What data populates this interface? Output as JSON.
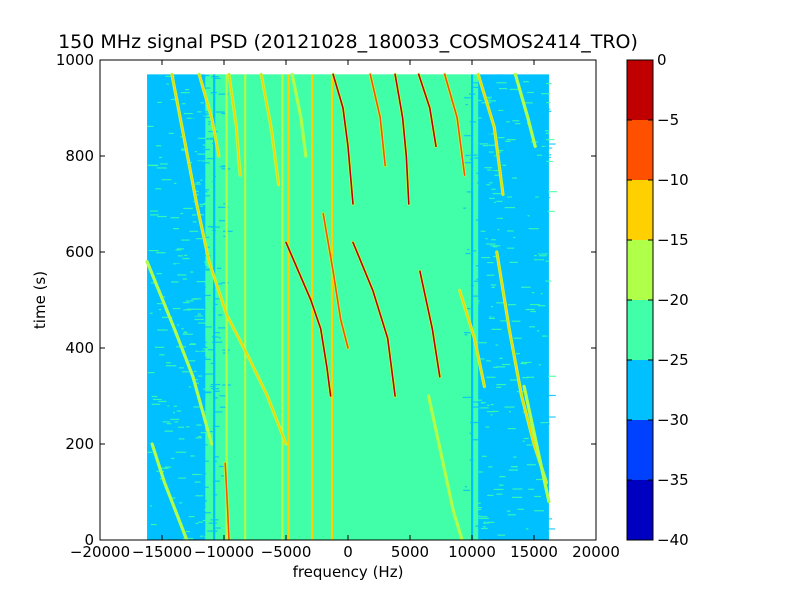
{
  "chart_data": {
    "type": "heatmap",
    "title": "150 MHz signal PSD (20121028_180033_COSMOS2414_TRO)",
    "xlabel": "frequency (Hz)",
    "ylabel": "time (s)",
    "xlim": [
      -20000,
      20000
    ],
    "ylim": [
      0,
      1000
    ],
    "xticks": [
      -20000,
      -15000,
      -10000,
      -5000,
      0,
      5000,
      10000,
      15000,
      20000
    ],
    "yticks": [
      0,
      200,
      400,
      600,
      800,
      1000
    ],
    "data_extent": {
      "x": [
        -16200,
        16200
      ],
      "y": [
        0,
        970
      ]
    },
    "background_level": -25,
    "regions": [
      {
        "x": [
          -16200,
          -11500
        ],
        "level": -30
      },
      {
        "x": [
          -11500,
          -7800
        ],
        "level": -25
      },
      {
        "x": [
          -7800,
          5500
        ],
        "level": -25
      },
      {
        "x": [
          5500,
          10500
        ],
        "level": -25
      },
      {
        "x": [
          10500,
          16200
        ],
        "level": -30
      }
    ],
    "vertical_lines": [
      {
        "x": -10800,
        "level": -30
      },
      {
        "x": -9800,
        "level": -20
      },
      {
        "x": -8300,
        "level": -20
      },
      {
        "x": -5300,
        "level": -20
      },
      {
        "x": -4800,
        "level": -15
      },
      {
        "x": -2900,
        "level": -15
      },
      {
        "x": -1300,
        "level": -15
      },
      {
        "x": 10000,
        "level": -30
      }
    ],
    "traces": [
      {
        "name": "",
        "level": -5,
        "points": [
          [
            -1200,
            970
          ],
          [
            -400,
            900
          ],
          [
            0,
            820
          ],
          [
            200,
            760
          ],
          [
            400,
            700
          ]
        ]
      },
      {
        "name": "",
        "level": -5,
        "points": [
          [
            -5000,
            620
          ],
          [
            -3000,
            500
          ],
          [
            -2200,
            440
          ],
          [
            -1700,
            360
          ],
          [
            -1400,
            300
          ]
        ]
      },
      {
        "name": "",
        "level": -5,
        "points": [
          [
            3800,
            970
          ],
          [
            4400,
            880
          ],
          [
            4700,
            800
          ],
          [
            4900,
            700
          ]
        ]
      },
      {
        "name": "",
        "level": -5,
        "points": [
          [
            400,
            620
          ],
          [
            2000,
            520
          ],
          [
            3200,
            420
          ],
          [
            3800,
            300
          ]
        ]
      },
      {
        "name": "",
        "level": -5,
        "points": [
          [
            5700,
            970
          ],
          [
            6600,
            900
          ],
          [
            7100,
            820
          ]
        ]
      },
      {
        "name": "",
        "level": -5,
        "points": [
          [
            5800,
            560
          ],
          [
            6800,
            440
          ],
          [
            7400,
            340
          ]
        ]
      },
      {
        "name": "",
        "level": -10,
        "points": [
          [
            7800,
            970
          ],
          [
            8800,
            880
          ],
          [
            9400,
            760
          ]
        ]
      },
      {
        "name": "",
        "level": -10,
        "points": [
          [
            1800,
            970
          ],
          [
            2600,
            880
          ],
          [
            3000,
            780
          ]
        ]
      },
      {
        "name": "",
        "level": -10,
        "points": [
          [
            -2000,
            680
          ],
          [
            -1200,
            560
          ],
          [
            -600,
            460
          ],
          [
            0,
            400
          ]
        ]
      },
      {
        "name": "",
        "level": -10,
        "points": [
          [
            -9900,
            160
          ],
          [
            -9700,
            60
          ],
          [
            -9600,
            0
          ]
        ]
      },
      {
        "name": "",
        "level": -15,
        "points": [
          [
            -14200,
            970
          ],
          [
            -12200,
            700
          ],
          [
            -11200,
            580
          ],
          [
            -9800,
            470
          ],
          [
            -8000,
            380
          ],
          [
            -6500,
            300
          ],
          [
            -5000,
            200
          ]
        ]
      },
      {
        "name": "",
        "level": -15,
        "points": [
          [
            -12000,
            970
          ],
          [
            -11000,
            880
          ],
          [
            -10400,
            800
          ]
        ]
      },
      {
        "name": "",
        "level": -15,
        "points": [
          [
            -7000,
            970
          ],
          [
            -6200,
            860
          ],
          [
            -5600,
            740
          ]
        ]
      },
      {
        "name": "",
        "level": -15,
        "points": [
          [
            -9600,
            970
          ],
          [
            -9000,
            860
          ],
          [
            -8700,
            760
          ]
        ]
      },
      {
        "name": "",
        "level": -15,
        "points": [
          [
            10500,
            970
          ],
          [
            11800,
            860
          ],
          [
            12500,
            720
          ]
        ]
      },
      {
        "name": "",
        "level": -15,
        "points": [
          [
            9000,
            520
          ],
          [
            10200,
            420
          ],
          [
            11000,
            320
          ]
        ]
      },
      {
        "name": "",
        "level": -15,
        "points": [
          [
            12000,
            600
          ],
          [
            13000,
            440
          ],
          [
            14000,
            300
          ],
          [
            15000,
            200
          ],
          [
            16000,
            120
          ]
        ]
      },
      {
        "name": "",
        "level": -20,
        "points": [
          [
            -16200,
            580
          ],
          [
            -14000,
            440
          ],
          [
            -12500,
            340
          ],
          [
            -11000,
            200
          ]
        ]
      },
      {
        "name": "",
        "level": -20,
        "points": [
          [
            -15800,
            200
          ],
          [
            -14800,
            120
          ],
          [
            -13600,
            40
          ],
          [
            -13000,
            0
          ]
        ]
      },
      {
        "name": "",
        "level": -20,
        "points": [
          [
            -4500,
            970
          ],
          [
            -3800,
            880
          ],
          [
            -3400,
            800
          ]
        ]
      },
      {
        "name": "",
        "level": -20,
        "points": [
          [
            13500,
            970
          ],
          [
            14500,
            880
          ],
          [
            15100,
            820
          ]
        ]
      },
      {
        "name": "",
        "level": -20,
        "points": [
          [
            6500,
            300
          ],
          [
            7500,
            180
          ],
          [
            8500,
            60
          ],
          [
            9200,
            0
          ]
        ]
      },
      {
        "name": "",
        "level": -20,
        "points": [
          [
            14200,
            320
          ],
          [
            15200,
            200
          ],
          [
            16200,
            80
          ]
        ]
      }
    ],
    "colorbar": {
      "boundaries": [
        -40,
        -35,
        -30,
        -25,
        -20,
        -15,
        -10,
        -5,
        0
      ],
      "colors": [
        "#0000c0",
        "#0040ff",
        "#00c0ff",
        "#40ffa8",
        "#b0ff48",
        "#ffd000",
        "#ff5000",
        "#c00000"
      ],
      "ticks": [
        0,
        -5,
        -10,
        -15,
        -20,
        -25,
        -30,
        -35,
        -40
      ]
    }
  }
}
